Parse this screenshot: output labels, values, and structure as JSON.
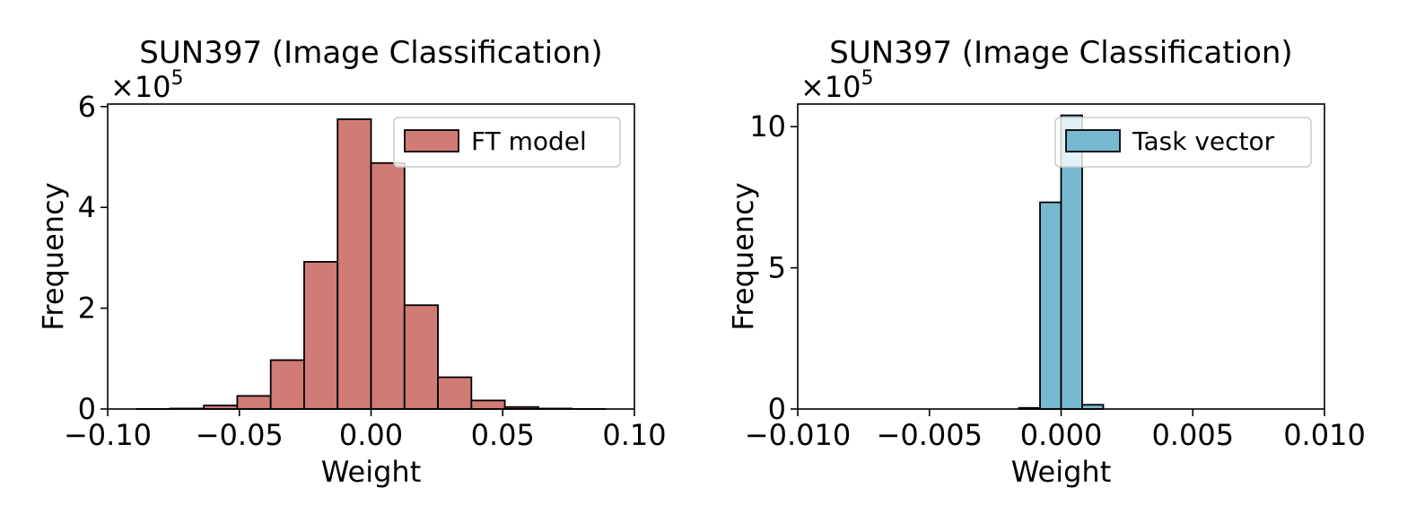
{
  "chart_data": [
    {
      "type": "histogram",
      "title": "SUN397 (Image Classification)",
      "xlabel": "Weight",
      "ylabel": "Frequency",
      "offset_text": {
        "base": "×10",
        "exponent": "5"
      },
      "xlim": [
        -0.1,
        0.1
      ],
      "ylim": [
        0,
        6.05
      ],
      "xticks": [
        -0.1,
        -0.05,
        0.0,
        0.05,
        0.1
      ],
      "xtick_labels": [
        "−0.10",
        "−0.05",
        "0.00",
        "0.05",
        "0.10"
      ],
      "yticks": [
        0,
        2,
        4,
        6
      ],
      "ytick_labels": [
        "0",
        "2",
        "4",
        "6"
      ],
      "bin_edges": [
        -0.0889,
        -0.0762,
        -0.0635,
        -0.0508,
        -0.0381,
        -0.0254,
        -0.0127,
        0.0,
        0.0127,
        0.0254,
        0.0381,
        0.0508,
        0.0635,
        0.0762,
        0.0889
      ],
      "values": [
        0.002,
        0.01,
        0.07,
        0.26,
        0.97,
        2.92,
        5.75,
        4.88,
        2.06,
        0.63,
        0.17,
        0.04,
        0.01,
        0.002
      ],
      "series": [
        {
          "name": "FT model",
          "color": "#d17b77"
        }
      ],
      "edge_color": "#000000",
      "legend_position": "upper right",
      "grid": false
    },
    {
      "type": "histogram",
      "title": "SUN397 (Image Classification)",
      "xlabel": "Weight",
      "ylabel": "Frequency",
      "offset_text": {
        "base": "×10",
        "exponent": "5"
      },
      "xlim": [
        -0.01,
        0.01
      ],
      "ylim": [
        0,
        10.8
      ],
      "xticks": [
        -0.01,
        -0.005,
        0.0,
        0.005,
        0.01
      ],
      "xtick_labels": [
        "−0.010",
        "−0.005",
        "0.000",
        "0.005",
        "0.010"
      ],
      "yticks": [
        0,
        5,
        10
      ],
      "ytick_labels": [
        "0",
        "5",
        "10"
      ],
      "bin_edges": [
        -0.0016,
        -0.0008,
        0.0,
        0.0008,
        0.0016
      ],
      "values": [
        0.04,
        7.32,
        10.4,
        0.15
      ],
      "series": [
        {
          "name": "Task vector",
          "color": "#78b9d2"
        }
      ],
      "edge_color": "#000000",
      "legend_position": "upper right",
      "grid": false
    }
  ]
}
